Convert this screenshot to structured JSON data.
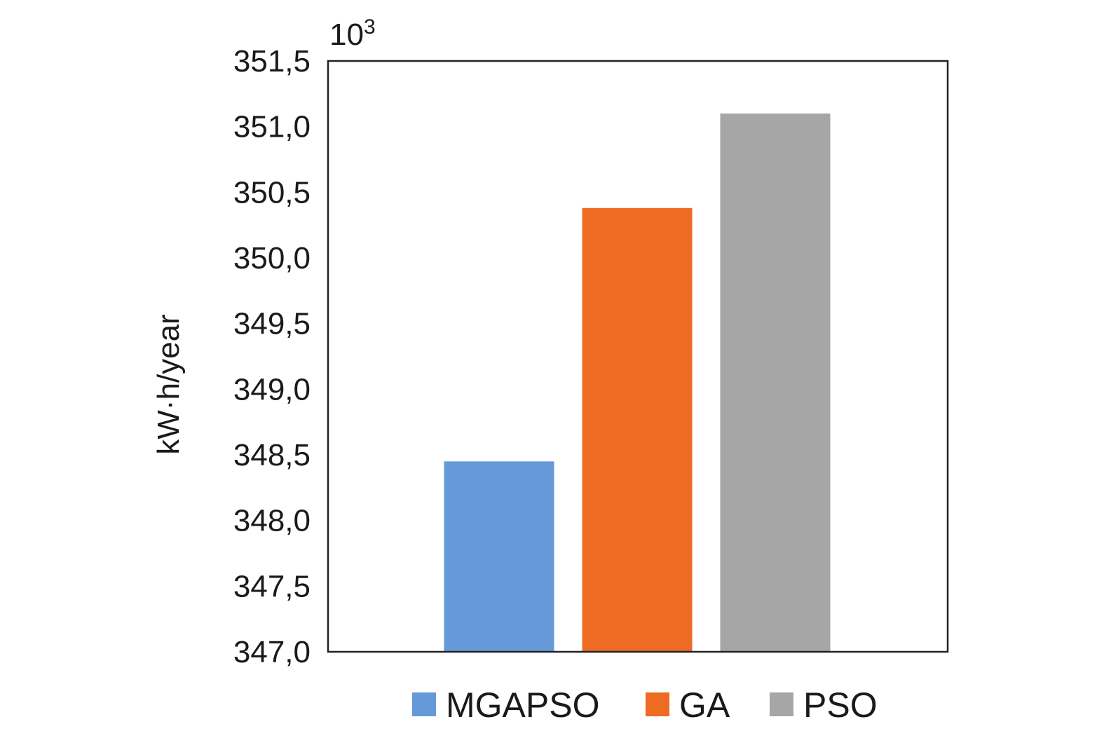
{
  "chart_data": {
    "type": "bar",
    "categories": [
      "MGAPSO",
      "GA",
      "PSO"
    ],
    "values": [
      348.45,
      350.38,
      351.1
    ],
    "colors": [
      "#6699d8",
      "#ed6b23",
      "#a6a6a6"
    ],
    "title": "",
    "xlabel": "",
    "ylabel": "kW·h/year",
    "ylim": [
      347.0,
      351.5
    ],
    "y_ticks": [
      {
        "value": 347.0,
        "label": "347,0"
      },
      {
        "value": 347.5,
        "label": "347,5"
      },
      {
        "value": 348.0,
        "label": "348,0"
      },
      {
        "value": 348.5,
        "label": "348,5"
      },
      {
        "value": 349.0,
        "label": "349,0"
      },
      {
        "value": 349.5,
        "label": "349,5"
      },
      {
        "value": 350.0,
        "label": "350,0"
      },
      {
        "value": 350.5,
        "label": "350,5"
      },
      {
        "value": 351.0,
        "label": "351,0"
      },
      {
        "value": 351.5,
        "label": "351,5"
      }
    ],
    "y_multiplier": {
      "base": "10",
      "exponent": "3"
    },
    "grid": false,
    "legend": {
      "position": "bottom",
      "entries": [
        "MGAPSO",
        "GA",
        "PSO"
      ]
    }
  }
}
